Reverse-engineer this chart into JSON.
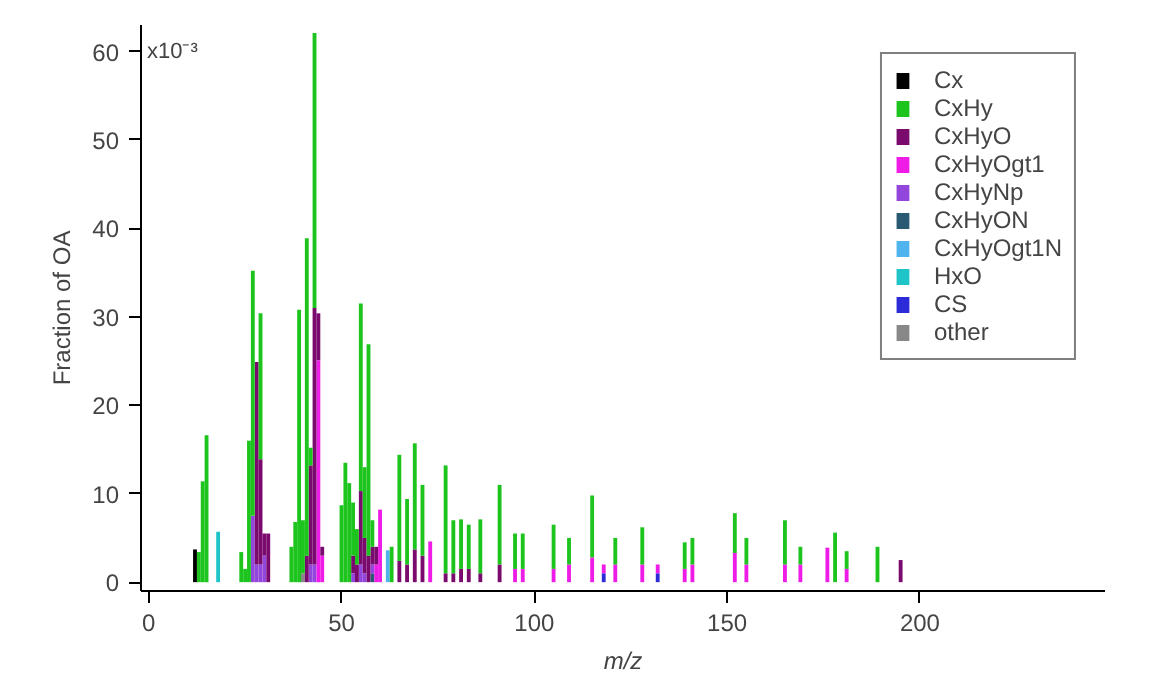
{
  "chart_data": {
    "type": "bar",
    "stacked": true,
    "xlabel": "m/z",
    "ylabel": "Fraction of OA",
    "annotations": [
      "x10⁻³"
    ],
    "xlim": [
      -2,
      248
    ],
    "ylim": [
      -1,
      63
    ],
    "xticks": [
      0,
      50,
      100,
      150,
      200
    ],
    "yticks": [
      0,
      10,
      20,
      30,
      40,
      50,
      60
    ],
    "grid": false,
    "legend": "top right",
    "x": [
      12,
      13,
      14,
      15,
      18,
      24,
      25,
      26,
      27,
      28,
      29,
      30,
      31,
      37,
      38,
      39,
      40,
      41,
      42,
      43,
      44,
      45,
      50,
      51,
      52,
      53,
      54,
      55,
      56,
      57,
      58,
      59,
      60,
      62,
      63,
      65,
      67,
      69,
      71,
      73,
      77,
      79,
      81,
      83,
      86,
      91,
      95,
      97,
      105,
      109,
      115,
      118,
      121,
      128,
      132,
      139,
      141,
      152,
      155,
      165,
      169,
      176,
      178,
      181,
      189,
      195
    ],
    "series": [
      {
        "name": "other",
        "color": "#888888",
        "values": [
          null,
          null,
          null,
          null,
          null,
          null,
          null,
          null,
          null,
          null,
          null,
          null,
          null,
          null,
          null,
          null,
          1,
          null,
          null,
          null,
          null,
          null,
          null,
          null,
          null,
          null,
          null,
          null,
          null,
          null,
          null,
          null,
          null,
          null,
          null,
          null,
          null,
          null,
          null,
          null,
          null,
          null,
          null,
          null,
          null,
          null,
          null,
          null,
          null,
          null,
          null,
          null,
          null,
          null,
          null,
          null,
          null,
          null,
          null,
          null,
          null,
          null,
          null,
          null,
          null,
          null
        ]
      },
      {
        "name": "CS",
        "color": "#2b2bd8",
        "values": [
          null,
          null,
          null,
          null,
          null,
          null,
          null,
          null,
          null,
          null,
          null,
          null,
          null,
          null,
          null,
          null,
          null,
          null,
          null,
          null,
          null,
          null,
          null,
          null,
          null,
          null,
          null,
          null,
          null,
          null,
          null,
          null,
          null,
          null,
          null,
          null,
          null,
          null,
          null,
          null,
          null,
          null,
          null,
          null,
          null,
          null,
          null,
          null,
          null,
          null,
          null,
          1,
          null,
          null,
          1,
          null,
          null,
          null,
          null,
          null,
          null,
          null,
          null,
          null,
          null,
          null
        ]
      },
      {
        "name": "HxO",
        "color": "#1fc4c8",
        "values": [
          null,
          null,
          null,
          null,
          5.7,
          null,
          null,
          null,
          null,
          null,
          null,
          null,
          null,
          null,
          null,
          null,
          null,
          null,
          null,
          null,
          null,
          null,
          null,
          null,
          null,
          null,
          null,
          null,
          null,
          null,
          null,
          null,
          null,
          null,
          null,
          null,
          null,
          null,
          null,
          null,
          null,
          null,
          null,
          null,
          null,
          null,
          null,
          null,
          null,
          null,
          null,
          null,
          null,
          null,
          null,
          null,
          null,
          null,
          null,
          null,
          null,
          null,
          null,
          null,
          null,
          null
        ]
      },
      {
        "name": "CxHyOgt1N",
        "color": "#4fb3ee",
        "values": [
          null,
          null,
          null,
          null,
          null,
          null,
          null,
          null,
          null,
          null,
          null,
          null,
          null,
          null,
          null,
          null,
          null,
          null,
          null,
          null,
          null,
          null,
          null,
          null,
          null,
          null,
          null,
          null,
          null,
          null,
          null,
          null,
          null,
          3.6,
          null,
          null,
          null,
          null,
          null,
          null,
          null,
          null,
          null,
          null,
          null,
          null,
          null,
          null,
          null,
          null,
          null,
          null,
          null,
          null,
          null,
          null,
          null,
          null,
          null,
          null,
          null,
          null,
          null,
          null,
          null,
          null
        ]
      },
      {
        "name": "CxHyON",
        "color": "#2a5a72",
        "values": [
          null,
          null,
          null,
          null,
          null,
          null,
          null,
          null,
          null,
          null,
          null,
          null,
          null,
          null,
          null,
          null,
          null,
          null,
          null,
          null,
          null,
          null,
          null,
          null,
          null,
          null,
          null,
          null,
          null,
          null,
          1,
          null,
          null,
          null,
          null,
          null,
          null,
          null,
          null,
          null,
          null,
          null,
          null,
          null,
          null,
          null,
          null,
          null,
          null,
          null,
          null,
          null,
          null,
          null,
          null,
          null,
          null,
          null,
          null,
          null,
          null,
          null,
          null,
          null,
          null,
          null
        ]
      },
      {
        "name": "CxHyNp",
        "color": "#9346dc",
        "values": [
          null,
          null,
          null,
          null,
          null,
          null,
          null,
          null,
          7.5,
          2,
          2,
          3,
          null,
          null,
          null,
          null,
          null,
          null,
          2,
          2,
          null,
          null,
          null,
          null,
          null,
          1,
          null,
          2,
          1,
          null,
          1,
          null,
          null,
          null,
          null,
          null,
          null,
          null,
          null,
          null,
          null,
          null,
          null,
          null,
          null,
          null,
          null,
          null,
          null,
          null,
          null,
          null,
          null,
          null,
          null,
          null,
          null,
          null,
          null,
          null,
          null,
          null,
          null,
          null,
          null,
          null
        ]
      },
      {
        "name": "CxHyOgt1",
        "color": "#ee1ce6",
        "values": [
          null,
          null,
          null,
          null,
          null,
          null,
          null,
          null,
          null,
          null,
          null,
          null,
          null,
          null,
          null,
          null,
          null,
          null,
          null,
          null,
          25.1,
          3,
          null,
          null,
          null,
          null,
          null,
          null,
          null,
          null,
          null,
          2,
          8.2,
          null,
          null,
          null,
          null,
          null,
          null,
          4.6,
          null,
          null,
          null,
          null,
          null,
          null,
          1.5,
          1.5,
          1.5,
          2,
          2.8,
          1,
          2,
          2,
          1,
          1.5,
          2,
          3.3,
          2,
          2,
          2,
          3.9,
          null,
          1.5,
          null,
          null
        ]
      },
      {
        "name": "CxHyO",
        "color": "#7b0a6e",
        "values": [
          null,
          null,
          null,
          null,
          null,
          null,
          null,
          null,
          null,
          22.9,
          11.9,
          2.5,
          5.5,
          null,
          null,
          null,
          null,
          3,
          11.2,
          29,
          5.3,
          1,
          null,
          null,
          null,
          2,
          2,
          8.3,
          4,
          3,
          2,
          2,
          null,
          null,
          null,
          2.4,
          2,
          3.7,
          3,
          null,
          1,
          1,
          1.5,
          1.5,
          1,
          2,
          null,
          null,
          null,
          null,
          null,
          null,
          null,
          null,
          null,
          null,
          null,
          null,
          null,
          null,
          null,
          null,
          null,
          null,
          null,
          2.5
        ]
      },
      {
        "name": "CxHy",
        "color": "#1dc41d",
        "values": [
          null,
          3.4,
          11.4,
          16.6,
          null,
          3.4,
          1.5,
          16,
          27.7,
          null,
          16.5,
          null,
          null,
          4,
          6.8,
          30.8,
          6,
          35.9,
          2,
          31.1,
          null,
          null,
          8.7,
          13.5,
          11.2,
          6,
          4,
          21.2,
          8,
          23.9,
          3,
          null,
          null,
          null,
          4,
          12,
          7.4,
          12,
          8,
          null,
          12.2,
          6,
          5.6,
          5,
          6.1,
          9,
          4,
          4,
          5,
          3,
          7,
          null,
          3,
          4.2,
          null,
          3,
          3,
          4.5,
          3,
          5,
          2,
          null,
          5.6,
          2,
          4,
          null
        ]
      },
      {
        "name": "Cx",
        "color": "#000000",
        "values": [
          3.7,
          null,
          null,
          null,
          null,
          null,
          null,
          null,
          null,
          null,
          null,
          null,
          null,
          null,
          null,
          null,
          null,
          null,
          null,
          null,
          null,
          null,
          null,
          null,
          null,
          null,
          null,
          null,
          null,
          null,
          null,
          null,
          null,
          null,
          null,
          null,
          null,
          null,
          null,
          null,
          null,
          null,
          null,
          null,
          null,
          null,
          null,
          null,
          null,
          null,
          null,
          null,
          null,
          null,
          null,
          null,
          null,
          null,
          null,
          null,
          null,
          null,
          null,
          null,
          null,
          null
        ]
      }
    ]
  }
}
